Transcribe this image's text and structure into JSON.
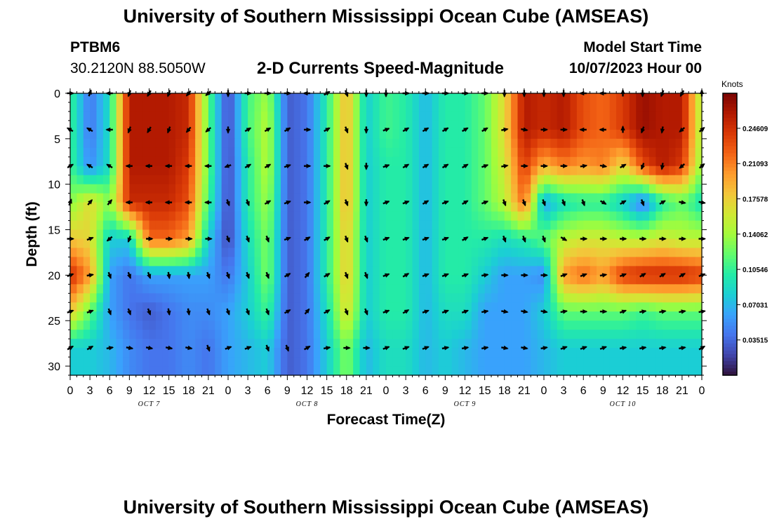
{
  "header": {
    "title": "University of Southern Mississippi Ocean Cube (AMSEAS)",
    "station": "PTBM6",
    "coords": "30.2120N  88.5050W",
    "subtitle": "2-D Currents Speed-Magnitude",
    "start_label": "Model Start Time",
    "start_value": "10/07/2023 Hour 00"
  },
  "footer": {
    "title": "University of Southern Mississippi Ocean Cube (AMSEAS)"
  },
  "chart_data": {
    "type": "heatmap",
    "title": "2-D Currents Speed-Magnitude",
    "xlabel": "Forecast Time(Z)",
    "ylabel": "Depth (ft)",
    "x_ticks": [
      "0",
      "3",
      "6",
      "9",
      "12",
      "15",
      "18",
      "21",
      "0",
      "3",
      "6",
      "9",
      "12",
      "15",
      "18",
      "21",
      "0",
      "3",
      "6",
      "9",
      "12",
      "15",
      "18",
      "21",
      "0",
      "3",
      "6",
      "9",
      "12",
      "15",
      "18",
      "21",
      "0"
    ],
    "date_labels": [
      {
        "label": "OCT 7",
        "hour": 12
      },
      {
        "label": "OCT 8",
        "hour": 36
      },
      {
        "label": "OCT 9",
        "hour": 60
      },
      {
        "label": "OCT 10",
        "hour": 84
      }
    ],
    "xlim_hours": [
      0,
      96
    ],
    "y_ticks": [
      "0",
      "5",
      "10",
      "15",
      "20",
      "25",
      "30"
    ],
    "ylim": [
      0,
      31
    ],
    "colorbar": {
      "unit": "Knots",
      "ticks": [
        "0.24609",
        "0.21093",
        "0.17578",
        "0.14062",
        "0.10546",
        "0.07031",
        "0.03515"
      ],
      "range": [
        0,
        0.281
      ],
      "colors": [
        "#30123b",
        "#4145ab",
        "#4675ed",
        "#39a2fc",
        "#1bcfd4",
        "#24eca6",
        "#61fc6c",
        "#a4fc3b",
        "#d1e834",
        "#f3c63a",
        "#fe9b2d",
        "#f36315",
        "#d93806",
        "#b11901",
        "#7a0403"
      ]
    },
    "depths_ft": [
      0,
      4,
      8,
      12,
      16,
      20,
      24,
      28
    ],
    "speed_knots": [
      [
        0.11,
        0.04,
        0.09,
        0.26,
        0.26,
        0.26,
        0.25,
        0.12,
        0.02,
        0.11,
        0.14,
        0.03,
        0.04,
        0.1,
        0.19,
        0.08,
        0.11,
        0.1,
        0.07,
        0.1,
        0.1,
        0.12,
        0.17,
        0.26,
        0.25,
        0.26,
        0.23,
        0.22,
        0.24,
        0.27,
        0.26,
        0.26,
        0.14
      ],
      [
        0.11,
        0.04,
        0.09,
        0.26,
        0.26,
        0.26,
        0.25,
        0.12,
        0.02,
        0.11,
        0.15,
        0.03,
        0.04,
        0.1,
        0.19,
        0.08,
        0.11,
        0.1,
        0.07,
        0.1,
        0.1,
        0.12,
        0.17,
        0.26,
        0.25,
        0.26,
        0.23,
        0.22,
        0.24,
        0.27,
        0.26,
        0.26,
        0.14
      ],
      [
        0.11,
        0.05,
        0.09,
        0.26,
        0.26,
        0.26,
        0.24,
        0.12,
        0.02,
        0.1,
        0.15,
        0.03,
        0.04,
        0.1,
        0.19,
        0.08,
        0.1,
        0.1,
        0.07,
        0.1,
        0.1,
        0.12,
        0.16,
        0.24,
        0.19,
        0.21,
        0.2,
        0.21,
        0.17,
        0.23,
        0.26,
        0.24,
        0.13
      ],
      [
        0.13,
        0.17,
        0.13,
        0.25,
        0.25,
        0.25,
        0.23,
        0.11,
        0.02,
        0.1,
        0.14,
        0.03,
        0.04,
        0.1,
        0.19,
        0.08,
        0.1,
        0.1,
        0.07,
        0.1,
        0.1,
        0.12,
        0.15,
        0.22,
        0.06,
        0.09,
        0.1,
        0.1,
        0.08,
        0.04,
        0.1,
        0.12,
        0.09
      ],
      [
        0.18,
        0.17,
        0.08,
        0.08,
        0.22,
        0.22,
        0.2,
        0.08,
        0.02,
        0.09,
        0.13,
        0.03,
        0.04,
        0.1,
        0.18,
        0.08,
        0.1,
        0.1,
        0.07,
        0.1,
        0.1,
        0.1,
        0.09,
        0.1,
        0.12,
        0.15,
        0.16,
        0.16,
        0.15,
        0.15,
        0.16,
        0.15,
        0.15
      ],
      [
        0.25,
        0.2,
        0.06,
        0.04,
        0.06,
        0.06,
        0.06,
        0.06,
        0.04,
        0.08,
        0.13,
        0.03,
        0.04,
        0.1,
        0.18,
        0.08,
        0.1,
        0.1,
        0.07,
        0.1,
        0.1,
        0.08,
        0.06,
        0.06,
        0.05,
        0.2,
        0.22,
        0.2,
        0.24,
        0.25,
        0.25,
        0.25,
        0.24
      ],
      [
        0.18,
        0.12,
        0.06,
        0.04,
        0.03,
        0.04,
        0.05,
        0.05,
        0.06,
        0.08,
        0.11,
        0.03,
        0.04,
        0.09,
        0.17,
        0.08,
        0.1,
        0.1,
        0.07,
        0.09,
        0.09,
        0.06,
        0.06,
        0.06,
        0.08,
        0.12,
        0.12,
        0.12,
        0.12,
        0.11,
        0.12,
        0.12,
        0.12
      ],
      [
        0.08,
        0.08,
        0.07,
        0.05,
        0.04,
        0.04,
        0.05,
        0.04,
        0.06,
        0.07,
        0.08,
        0.03,
        0.04,
        0.08,
        0.13,
        0.07,
        0.09,
        0.09,
        0.07,
        0.08,
        0.07,
        0.06,
        0.06,
        0.06,
        0.07,
        0.08,
        0.08,
        0.08,
        0.08,
        0.08,
        0.08,
        0.08,
        0.08
      ]
    ],
    "direction_deg": [
      [
        90,
        20,
        270,
        200,
        210,
        200,
        220,
        230,
        180,
        90,
        90,
        90,
        270,
        60,
        160,
        180,
        180,
        90,
        90,
        90,
        90,
        90,
        180,
        180,
        180,
        180,
        270,
        270,
        0,
        180,
        200,
        210,
        0
      ],
      [
        300,
        300,
        270,
        200,
        210,
        200,
        220,
        230,
        180,
        60,
        60,
        60,
        90,
        60,
        160,
        180,
        70,
        60,
        60,
        60,
        60,
        60,
        80,
        100,
        90,
        90,
        270,
        270,
        0,
        200,
        190,
        230,
        50
      ],
      [
        60,
        300,
        300,
        270,
        270,
        270,
        270,
        270,
        250,
        60,
        60,
        70,
        90,
        90,
        160,
        180,
        70,
        60,
        60,
        60,
        60,
        70,
        80,
        90,
        90,
        90,
        80,
        100,
        60,
        200,
        190,
        230,
        50
      ],
      [
        20,
        40,
        40,
        270,
        270,
        270,
        270,
        270,
        160,
        160,
        60,
        70,
        90,
        60,
        160,
        180,
        70,
        70,
        60,
        70,
        60,
        70,
        160,
        160,
        160,
        160,
        160,
        120,
        60,
        160,
        60,
        100,
        100
      ],
      [
        90,
        70,
        230,
        200,
        90,
        90,
        90,
        90,
        160,
        160,
        160,
        70,
        60,
        60,
        160,
        160,
        70,
        70,
        70,
        70,
        60,
        70,
        160,
        160,
        160,
        120,
        90,
        90,
        90,
        90,
        90,
        90,
        90
      ],
      [
        70,
        80,
        160,
        160,
        160,
        170,
        170,
        160,
        160,
        160,
        160,
        60,
        40,
        60,
        160,
        160,
        70,
        60,
        70,
        70,
        70,
        80,
        90,
        90,
        90,
        70,
        70,
        80,
        70,
        60,
        60,
        60,
        70
      ],
      [
        70,
        70,
        160,
        160,
        160,
        170,
        170,
        160,
        160,
        160,
        160,
        60,
        40,
        60,
        160,
        160,
        70,
        60,
        70,
        70,
        70,
        80,
        100,
        100,
        100,
        80,
        90,
        90,
        70,
        80,
        80,
        80,
        80
      ],
      [
        60,
        60,
        80,
        100,
        100,
        100,
        100,
        160,
        70,
        70,
        160,
        160,
        60,
        80,
        90,
        90,
        70,
        70,
        70,
        80,
        80,
        80,
        100,
        100,
        80,
        70,
        70,
        70,
        80,
        80,
        80,
        80,
        60
      ]
    ]
  }
}
